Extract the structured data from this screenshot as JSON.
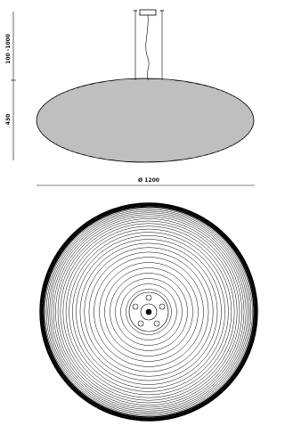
{
  "dimensions": {
    "suspension": "100 -1000",
    "height": "430",
    "diameter": "Ø 1200"
  }
}
